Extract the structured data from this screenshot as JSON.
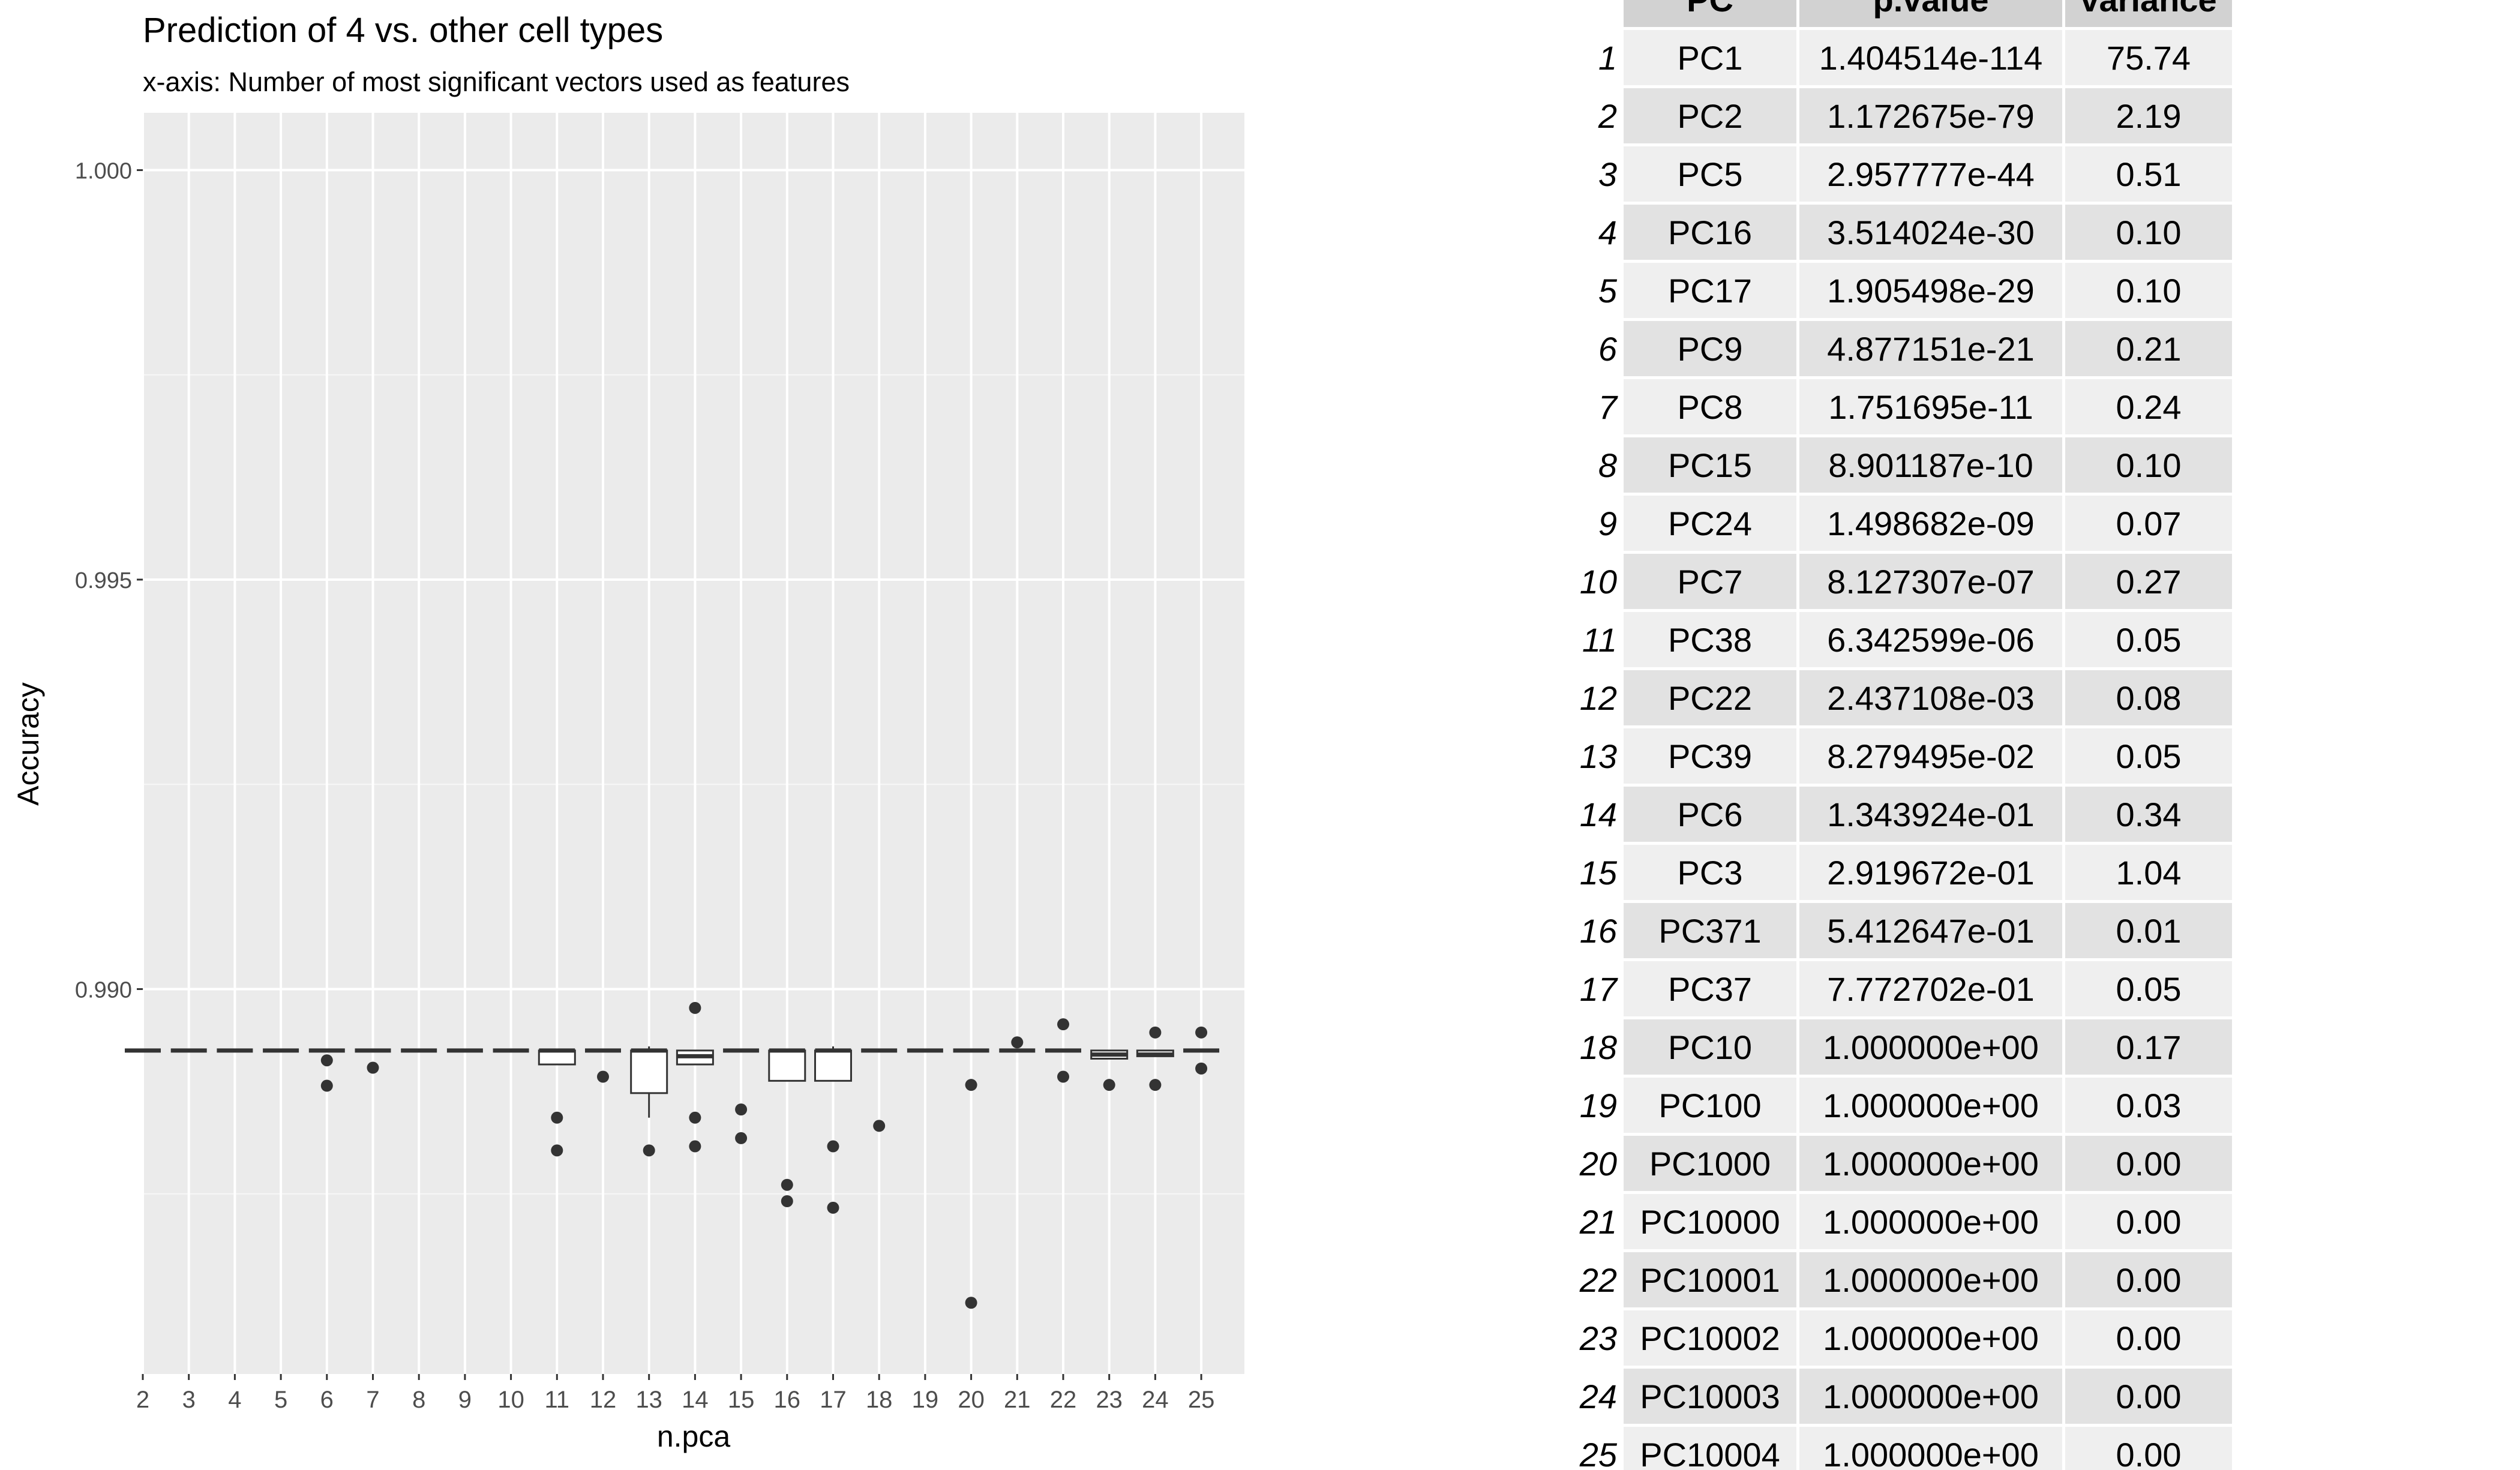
{
  "chart_data": {
    "type": "box",
    "title": "Prediction of 4 vs. other cell types",
    "subtitle": "x-axis: Number of most significant vectors used as features",
    "xlabel": "n.pca",
    "ylabel": "Accuracy",
    "ylim": [
      0.9853,
      1.0007
    ],
    "yticks": [
      "0.990",
      "0.995",
      "1.000"
    ],
    "ytick_values": [
      0.99,
      0.995,
      1.0
    ],
    "grid": true,
    "categories": [
      "2",
      "3",
      "4",
      "5",
      "6",
      "7",
      "8",
      "9",
      "10",
      "11",
      "12",
      "13",
      "14",
      "15",
      "16",
      "17",
      "18",
      "19",
      "20",
      "21",
      "22",
      "23",
      "24",
      "25"
    ],
    "boxes": [
      {
        "q1": 0.98925,
        "median": 0.98925,
        "q3": 0.98925,
        "lo": 0.98925,
        "hi": 0.98925,
        "outliers": []
      },
      {
        "q1": 0.98925,
        "median": 0.98925,
        "q3": 0.98925,
        "lo": 0.98925,
        "hi": 0.98925,
        "outliers": []
      },
      {
        "q1": 0.98925,
        "median": 0.98925,
        "q3": 0.98925,
        "lo": 0.98925,
        "hi": 0.98925,
        "outliers": []
      },
      {
        "q1": 0.98925,
        "median": 0.98925,
        "q3": 0.98925,
        "lo": 0.98925,
        "hi": 0.98925,
        "outliers": []
      },
      {
        "q1": 0.98925,
        "median": 0.98925,
        "q3": 0.98925,
        "lo": 0.98925,
        "hi": 0.98925,
        "outliers": [
          0.98913,
          0.98882
        ]
      },
      {
        "q1": 0.98925,
        "median": 0.98925,
        "q3": 0.98925,
        "lo": 0.98925,
        "hi": 0.98925,
        "outliers": [
          0.98904
        ]
      },
      {
        "q1": 0.98925,
        "median": 0.98925,
        "q3": 0.98925,
        "lo": 0.98925,
        "hi": 0.98925,
        "outliers": []
      },
      {
        "q1": 0.98925,
        "median": 0.98925,
        "q3": 0.98925,
        "lo": 0.98925,
        "hi": 0.98925,
        "outliers": []
      },
      {
        "q1": 0.98925,
        "median": 0.98925,
        "q3": 0.98925,
        "lo": 0.98925,
        "hi": 0.98925,
        "outliers": []
      },
      {
        "q1": 0.98908,
        "median": 0.98925,
        "q3": 0.98925,
        "lo": 0.98908,
        "hi": 0.98925,
        "outliers": [
          0.98843,
          0.98803
        ]
      },
      {
        "q1": 0.98925,
        "median": 0.98925,
        "q3": 0.98925,
        "lo": 0.98925,
        "hi": 0.98925,
        "outliers": [
          0.98893
        ]
      },
      {
        "q1": 0.98873,
        "median": 0.98925,
        "q3": 0.98925,
        "lo": 0.98843,
        "hi": 0.9893,
        "outliers": [
          0.98803
        ]
      },
      {
        "q1": 0.98908,
        "median": 0.98918,
        "q3": 0.98925,
        "lo": 0.98908,
        "hi": 0.98925,
        "outliers": [
          0.98977,
          0.98843,
          0.98808
        ]
      },
      {
        "q1": 0.98925,
        "median": 0.98925,
        "q3": 0.98925,
        "lo": 0.98925,
        "hi": 0.98925,
        "outliers": [
          0.98853,
          0.98818
        ]
      },
      {
        "q1": 0.98888,
        "median": 0.98925,
        "q3": 0.98925,
        "lo": 0.98888,
        "hi": 0.98925,
        "outliers": [
          0.98761,
          0.98741
        ]
      },
      {
        "q1": 0.98888,
        "median": 0.98925,
        "q3": 0.98925,
        "lo": 0.98888,
        "hi": 0.9893,
        "outliers": [
          0.98808,
          0.98733
        ]
      },
      {
        "q1": 0.98925,
        "median": 0.98925,
        "q3": 0.98925,
        "lo": 0.98925,
        "hi": 0.98925,
        "outliers": [
          0.98833
        ]
      },
      {
        "q1": 0.98925,
        "median": 0.98925,
        "q3": 0.98925,
        "lo": 0.98925,
        "hi": 0.98925,
        "outliers": []
      },
      {
        "q1": 0.98925,
        "median": 0.98925,
        "q3": 0.98925,
        "lo": 0.98925,
        "hi": 0.98925,
        "outliers": [
          0.98883,
          0.98617
        ]
      },
      {
        "q1": 0.98925,
        "median": 0.98925,
        "q3": 0.98925,
        "lo": 0.98925,
        "hi": 0.98925,
        "outliers": [
          0.98935
        ]
      },
      {
        "q1": 0.98925,
        "median": 0.98925,
        "q3": 0.98925,
        "lo": 0.98925,
        "hi": 0.98925,
        "outliers": [
          0.98957,
          0.98893
        ]
      },
      {
        "q1": 0.98915,
        "median": 0.9892,
        "q3": 0.98925,
        "lo": 0.98915,
        "hi": 0.98925,
        "outliers": [
          0.98883
        ]
      },
      {
        "q1": 0.98918,
        "median": 0.9892,
        "q3": 0.98925,
        "lo": 0.98918,
        "hi": 0.98925,
        "outliers": [
          0.98947,
          0.98883
        ]
      },
      {
        "q1": 0.98925,
        "median": 0.98925,
        "q3": 0.98925,
        "lo": 0.98925,
        "hi": 0.98925,
        "outliers": [
          0.98947,
          0.98903
        ]
      }
    ]
  },
  "table": {
    "headers": [
      "PC",
      "p.value",
      "variance"
    ],
    "rows": [
      {
        "n": "1",
        "pc": "PC1",
        "p": "1.404514e-114",
        "v": "75.74"
      },
      {
        "n": "2",
        "pc": "PC2",
        "p": "1.172675e-79",
        "v": "2.19"
      },
      {
        "n": "3",
        "pc": "PC5",
        "p": "2.957777e-44",
        "v": "0.51"
      },
      {
        "n": "4",
        "pc": "PC16",
        "p": "3.514024e-30",
        "v": "0.10"
      },
      {
        "n": "5",
        "pc": "PC17",
        "p": "1.905498e-29",
        "v": "0.10"
      },
      {
        "n": "6",
        "pc": "PC9",
        "p": "4.877151e-21",
        "v": "0.21"
      },
      {
        "n": "7",
        "pc": "PC8",
        "p": "1.751695e-11",
        "v": "0.24"
      },
      {
        "n": "8",
        "pc": "PC15",
        "p": "8.901187e-10",
        "v": "0.10"
      },
      {
        "n": "9",
        "pc": "PC24",
        "p": "1.498682e-09",
        "v": "0.07"
      },
      {
        "n": "10",
        "pc": "PC7",
        "p": "8.127307e-07",
        "v": "0.27"
      },
      {
        "n": "11",
        "pc": "PC38",
        "p": "6.342599e-06",
        "v": "0.05"
      },
      {
        "n": "12",
        "pc": "PC22",
        "p": "2.437108e-03",
        "v": "0.08"
      },
      {
        "n": "13",
        "pc": "PC39",
        "p": "8.279495e-02",
        "v": "0.05"
      },
      {
        "n": "14",
        "pc": "PC6",
        "p": "1.343924e-01",
        "v": "0.34"
      },
      {
        "n": "15",
        "pc": "PC3",
        "p": "2.919672e-01",
        "v": "1.04"
      },
      {
        "n": "16",
        "pc": "PC371",
        "p": "5.412647e-01",
        "v": "0.01"
      },
      {
        "n": "17",
        "pc": "PC37",
        "p": "7.772702e-01",
        "v": "0.05"
      },
      {
        "n": "18",
        "pc": "PC10",
        "p": "1.000000e+00",
        "v": "0.17"
      },
      {
        "n": "19",
        "pc": "PC100",
        "p": "1.000000e+00",
        "v": "0.03"
      },
      {
        "n": "20",
        "pc": "PC1000",
        "p": "1.000000e+00",
        "v": "0.00"
      },
      {
        "n": "21",
        "pc": "PC10000",
        "p": "1.000000e+00",
        "v": "0.00"
      },
      {
        "n": "22",
        "pc": "PC10001",
        "p": "1.000000e+00",
        "v": "0.00"
      },
      {
        "n": "23",
        "pc": "PC10002",
        "p": "1.000000e+00",
        "v": "0.00"
      },
      {
        "n": "24",
        "pc": "PC10003",
        "p": "1.000000e+00",
        "v": "0.00"
      },
      {
        "n": "25",
        "pc": "PC10004",
        "p": "1.000000e+00",
        "v": "0.00"
      }
    ]
  }
}
